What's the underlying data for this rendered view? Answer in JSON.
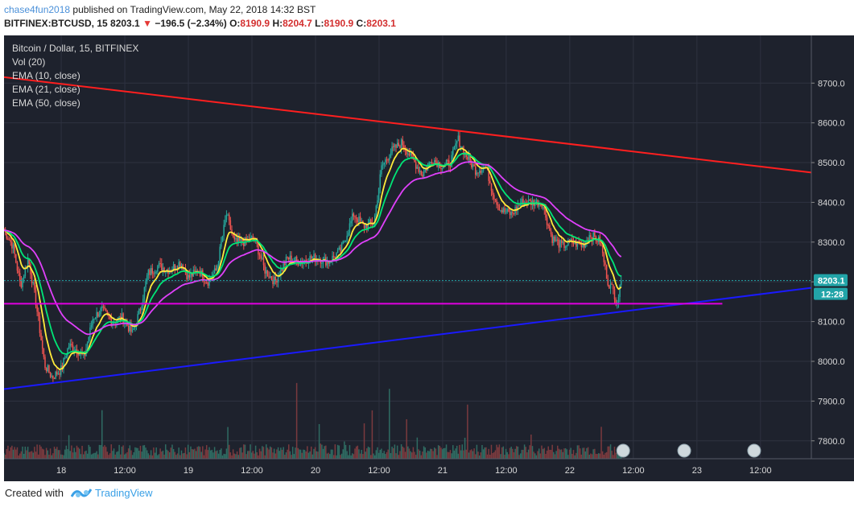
{
  "header": {
    "author": "chase4fun2018",
    "published_text": "published on TradingView.com, May 22, 2018 14:32 BST",
    "symbol": "BITFINEX:BTCUSD, 15",
    "last": "8203.1",
    "change_arrow": "▼",
    "change": "−196.5 (−2.34%)",
    "o_label": "O:",
    "o_val": "8190.9",
    "h_label": "H:",
    "h_val": "8204.7",
    "l_label": "L:",
    "l_val": "8190.9",
    "c_label": "C:",
    "c_val": "8203.1"
  },
  "legend": {
    "title": "Bitcoin / Dollar, 15, BITFINEX",
    "vol": "Vol (20)",
    "ema10": "EMA (10, close)",
    "ema21": "EMA (21, close)",
    "ema50": "EMA (50, close)"
  },
  "price_tag": "8203.1",
  "time_tag": "12:28",
  "footer": {
    "created": "Created with",
    "brand": "TradingView"
  },
  "colors": {
    "background": "#1e222d",
    "grid": "#2e3240",
    "up": "#26a69a",
    "down": "#ef5350",
    "ema10": "#ffeb3b",
    "ema21": "#00e676",
    "ema50": "#e040fb",
    "resistance": "#ff1f1f",
    "support": "#1a1aff",
    "horizontal": "#e000e0",
    "price_tag": "#22a4a8",
    "volume_ma": "#ff9800"
  },
  "chart_data": {
    "type": "candlestick",
    "title": "Bitcoin / Dollar, 15, BITFINEX",
    "y_ticks": [
      7800,
      7900,
      8000,
      8100,
      8200,
      8300,
      8400,
      8500,
      8600,
      8700
    ],
    "y_tick_labels": [
      "7800.0",
      "7900.0",
      "8000.0",
      "8100.0",
      "8200.0",
      "8300.0",
      "8400.0",
      "8500.0",
      "8600.0",
      "8700.0"
    ],
    "ylim": [
      7755,
      8820
    ],
    "x_ticks": [
      "18",
      "12:00",
      "19",
      "12:00",
      "20",
      "12:00",
      "21",
      "12:00",
      "22",
      "12:00",
      "23",
      "12:00"
    ],
    "xlim_days": [
      17.55,
      23.9
    ],
    "x_tick_days": [
      18.0,
      18.5,
      19.0,
      19.5,
      20.0,
      20.5,
      21.0,
      21.5,
      22.0,
      22.5,
      23.0,
      23.5
    ],
    "last_price": 8203.1,
    "anchors": [
      [
        17.55,
        8330
      ],
      [
        17.62,
        8290
      ],
      [
        17.68,
        8190
      ],
      [
        17.74,
        8260
      ],
      [
        17.8,
        8150
      ],
      [
        17.87,
        7990
      ],
      [
        17.93,
        7960
      ],
      [
        18.0,
        7980
      ],
      [
        18.06,
        8040
      ],
      [
        18.12,
        8030
      ],
      [
        18.18,
        8010
      ],
      [
        18.25,
        8110
      ],
      [
        18.32,
        8130
      ],
      [
        18.4,
        8100
      ],
      [
        18.48,
        8110
      ],
      [
        18.56,
        8070
      ],
      [
        18.62,
        8130
      ],
      [
        18.68,
        8220
      ],
      [
        18.76,
        8240
      ],
      [
        18.85,
        8230
      ],
      [
        18.94,
        8250
      ],
      [
        19.0,
        8210
      ],
      [
        19.08,
        8230
      ],
      [
        19.15,
        8200
      ],
      [
        19.22,
        8230
      ],
      [
        19.3,
        8370
      ],
      [
        19.36,
        8300
      ],
      [
        19.44,
        8300
      ],
      [
        19.52,
        8310
      ],
      [
        19.6,
        8230
      ],
      [
        19.68,
        8200
      ],
      [
        19.78,
        8260
      ],
      [
        19.88,
        8250
      ],
      [
        19.96,
        8260
      ],
      [
        20.02,
        8260
      ],
      [
        20.1,
        8250
      ],
      [
        20.2,
        8280
      ],
      [
        20.3,
        8370
      ],
      [
        20.38,
        8340
      ],
      [
        20.46,
        8350
      ],
      [
        20.52,
        8490
      ],
      [
        20.6,
        8530
      ],
      [
        20.68,
        8550
      ],
      [
        20.76,
        8510
      ],
      [
        20.84,
        8470
      ],
      [
        20.92,
        8510
      ],
      [
        21.0,
        8490
      ],
      [
        21.06,
        8500
      ],
      [
        21.12,
        8560
      ],
      [
        21.18,
        8520
      ],
      [
        21.26,
        8480
      ],
      [
        21.34,
        8490
      ],
      [
        21.4,
        8420
      ],
      [
        21.46,
        8380
      ],
      [
        21.54,
        8370
      ],
      [
        21.62,
        8400
      ],
      [
        21.7,
        8400
      ],
      [
        21.78,
        8400
      ],
      [
        21.86,
        8310
      ],
      [
        21.94,
        8290
      ],
      [
        22.02,
        8300
      ],
      [
        22.1,
        8290
      ],
      [
        22.16,
        8320
      ],
      [
        22.24,
        8300
      ],
      [
        22.3,
        8200
      ],
      [
        22.34,
        8180
      ],
      [
        22.37,
        8150
      ],
      [
        22.41,
        8200
      ]
    ],
    "ema10_hint": "computed from closes",
    "lines": {
      "resistance": [
        [
          17.55,
          8715
        ],
        [
          23.9,
          8475
        ]
      ],
      "support": [
        [
          17.55,
          7930
        ],
        [
          23.9,
          8185
        ]
      ],
      "horizontal": {
        "from": 17.55,
        "to": 23.2,
        "value": 8145
      }
    }
  }
}
